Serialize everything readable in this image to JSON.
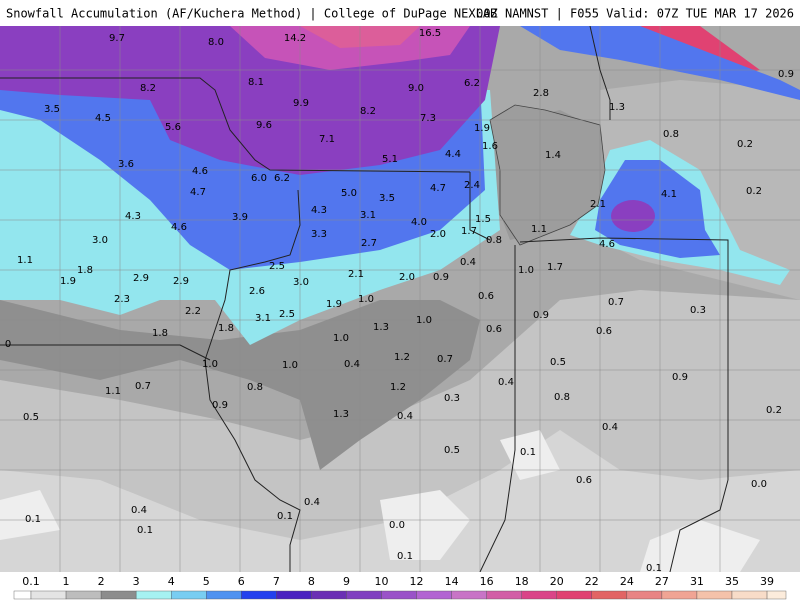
{
  "header": {
    "title": "Snowfall Accumulation (AF/Kuchera Method) | College of DuPage NEXLAB",
    "run": "00Z NAMNST | F055 Valid: 07Z TUE MAR 17 2026"
  },
  "map_labels": [
    "9.7",
    "8.0",
    "14.2",
    "16.5",
    "0.9",
    "8.2",
    "8.1",
    "9.0",
    "6.2",
    "2.8",
    "3.5",
    "4.5",
    "9.9",
    "8.2",
    "7.3",
    "1.3",
    "5.6",
    "9.6",
    "1.9",
    "0.8",
    "7.1",
    "1.6",
    "0.2",
    "3.6",
    "4.6",
    "5.1",
    "4.4",
    "1.4",
    "6.0",
    "6.2",
    "4.7",
    "5.0",
    "3.5",
    "4.7",
    "2.4",
    "4.1",
    "0.2",
    "2.1",
    "4.3",
    "4.3",
    "3.1",
    "3.9",
    "4.0",
    "1.5",
    "4.6",
    "3.3",
    "2.0",
    "1.7",
    "1.1",
    "3.0",
    "2.7",
    "0.8",
    "4.6",
    "1.1",
    "0.4",
    "2.5",
    "1.0",
    "1.7",
    "1.8",
    "1.9",
    "2.9",
    "2.9",
    "3.0",
    "2.1",
    "2.0",
    "0.9",
    "2.6",
    "0.6",
    "2.3",
    "1.0",
    "0.7",
    "1.9",
    "2.2",
    "2.5",
    "3.1",
    "0.9",
    "0.3",
    "1.0",
    "1.8",
    "1.8",
    "1.3",
    "0.6",
    "0.6",
    "0",
    "1.0",
    "1.2",
    "0.7",
    "0.4",
    "1.0",
    "1.0",
    "0.5",
    "1.1",
    "0.7",
    "0.8",
    "1.2",
    "0.4",
    "0.9",
    "0.3",
    "0.8",
    "0.9",
    "1.3",
    "0.4",
    "0.5",
    "0.2",
    "0.4",
    "0.5",
    "0.1",
    "0.6",
    "0.0",
    "0.4",
    "0.4",
    "0.1",
    "0.1",
    "0.0",
    "0.1",
    "0.1",
    "0.1"
  ],
  "colorbar": {
    "labels": [
      "0.1",
      "1",
      "2",
      "3",
      "4",
      "5",
      "6",
      "7",
      "8",
      "9",
      "10",
      "12",
      "14",
      "16",
      "18",
      "20",
      "22",
      "24",
      "27",
      "31",
      "35",
      "39"
    ],
    "colors": [
      "#ffffff",
      "#e4e4e4",
      "#bdbdbd",
      "#8c8c8c",
      "#a6f2f2",
      "#78cdf2",
      "#4f92f0",
      "#2340ee",
      "#4a22c0",
      "#6a2fb4",
      "#8040c0",
      "#9a52c8",
      "#b264d2",
      "#c874c6",
      "#d25ea6",
      "#da4488",
      "#e04272",
      "#e26464",
      "#e88484",
      "#f0a494",
      "#f4c2aa",
      "#f8dcc8",
      "#fcecdc"
    ]
  }
}
